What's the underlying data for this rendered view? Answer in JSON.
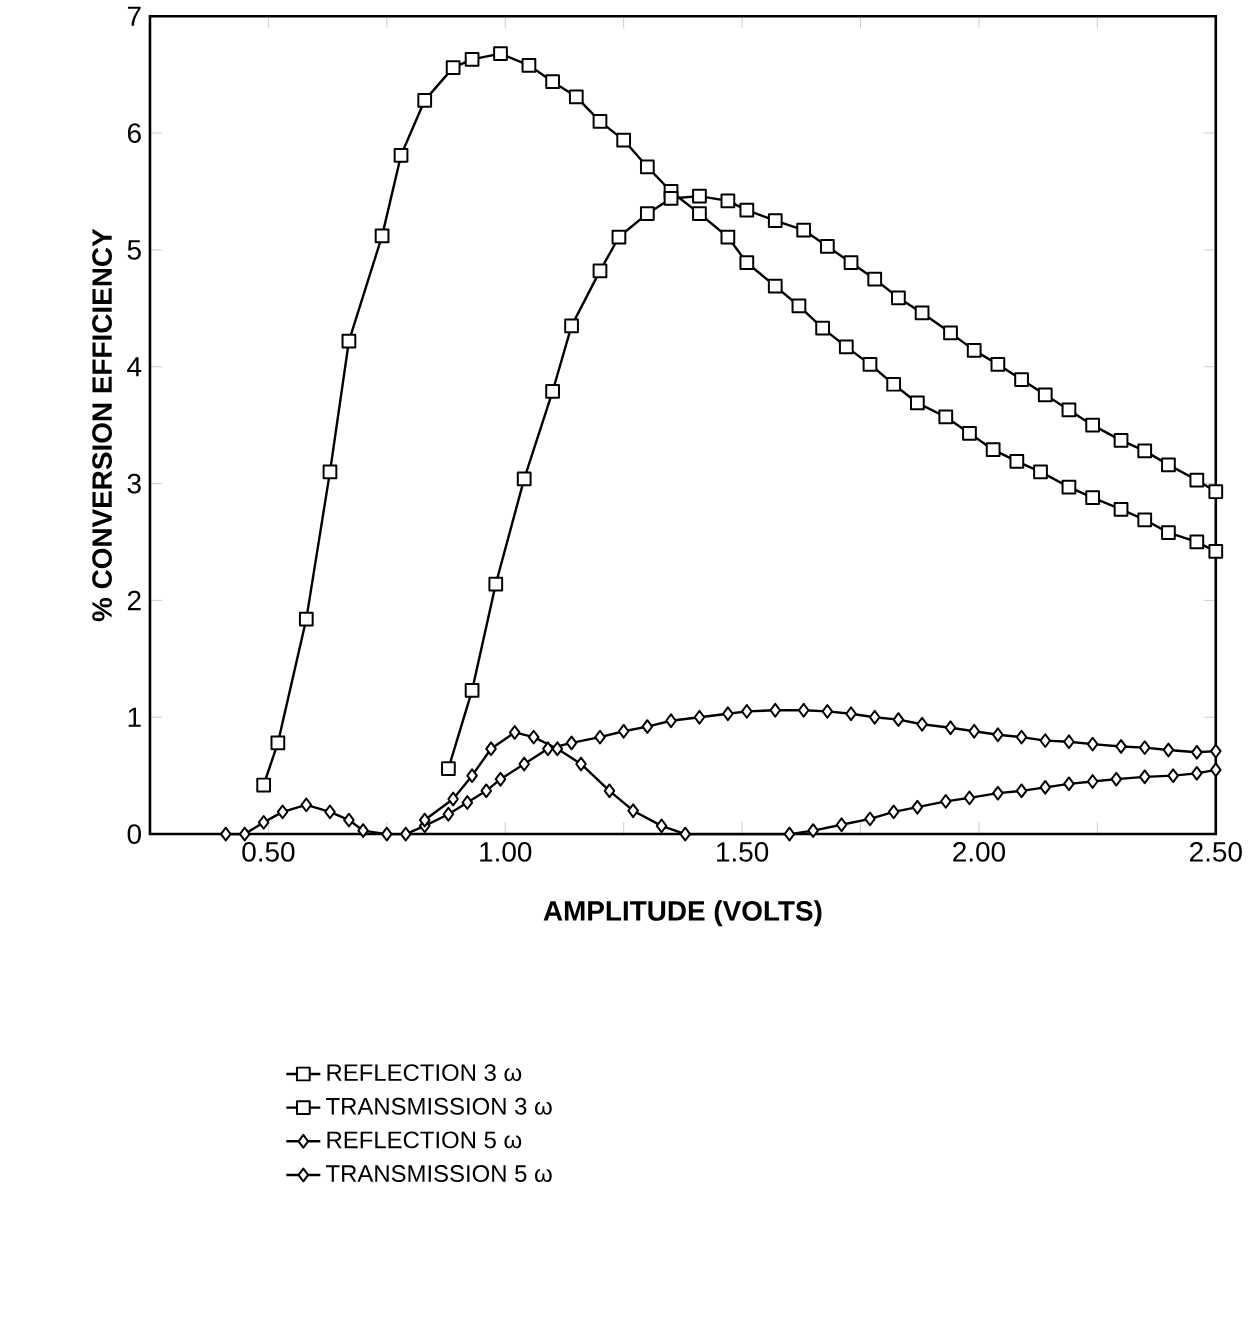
{
  "chart_data": {
    "type": "line",
    "xlabel": "AMPLITUDE (VOLTS)",
    "ylabel": "% CONVERSION EFFICIENCY",
    "xlim": [
      0.25,
      2.5
    ],
    "ylim": [
      0,
      7
    ],
    "xticks": [
      {
        "value": 0.5,
        "label": "0.50"
      },
      {
        "value": 0.75,
        "label": null
      },
      {
        "value": 1.0,
        "label": "1.00"
      },
      {
        "value": 1.25,
        "label": null
      },
      {
        "value": 1.5,
        "label": "1.50"
      },
      {
        "value": 1.75,
        "label": null
      },
      {
        "value": 2.0,
        "label": "2.00"
      },
      {
        "value": 2.25,
        "label": null
      },
      {
        "value": 2.5,
        "label": "2.50"
      }
    ],
    "yticks": [
      0,
      1,
      2,
      3,
      4,
      5,
      6,
      7
    ],
    "grid": false,
    "legend": "bottom",
    "line_style": "solid",
    "series": [
      {
        "name": "REFLECTION 3 ω",
        "color": "#000000",
        "marker": "square",
        "x": [
          0.49,
          0.52,
          0.58,
          0.63,
          0.67,
          0.74,
          0.78,
          0.83,
          0.89,
          0.93,
          0.99,
          1.05,
          1.1,
          1.15,
          1.2,
          1.25,
          1.3,
          1.35,
          1.41,
          1.47,
          1.51,
          1.57,
          1.62,
          1.67,
          1.72,
          1.77,
          1.82,
          1.87,
          1.93,
          1.98,
          2.03,
          2.08,
          2.13,
          2.19,
          2.24,
          2.3,
          2.35,
          2.4,
          2.46,
          2.5
        ],
        "values": [
          0.42,
          0.78,
          1.84,
          3.1,
          4.22,
          5.12,
          5.81,
          6.28,
          6.56,
          6.63,
          6.68,
          6.58,
          6.44,
          6.31,
          6.1,
          5.94,
          5.71,
          5.5,
          5.31,
          5.11,
          4.89,
          4.69,
          4.52,
          4.33,
          4.17,
          4.02,
          3.85,
          3.69,
          3.57,
          3.43,
          3.29,
          3.19,
          3.1,
          2.97,
          2.88,
          2.78,
          2.69,
          2.58,
          2.5,
          2.42
        ]
      },
      {
        "name": "TRANSMISSION 3 ω",
        "color": "#000000",
        "marker": "square",
        "x": [
          0.88,
          0.93,
          0.98,
          1.04,
          1.1,
          1.14,
          1.2,
          1.24,
          1.3,
          1.35,
          1.41,
          1.47,
          1.51,
          1.57,
          1.63,
          1.68,
          1.73,
          1.78,
          1.83,
          1.88,
          1.94,
          1.99,
          2.04,
          2.09,
          2.14,
          2.19,
          2.24,
          2.3,
          2.35,
          2.4,
          2.46,
          2.5
        ],
        "values": [
          0.56,
          1.23,
          2.14,
          3.04,
          3.79,
          4.35,
          4.82,
          5.11,
          5.31,
          5.44,
          5.46,
          5.42,
          5.34,
          5.25,
          5.17,
          5.03,
          4.89,
          4.75,
          4.59,
          4.46,
          4.29,
          4.14,
          4.02,
          3.89,
          3.76,
          3.63,
          3.5,
          3.37,
          3.28,
          3.16,
          3.03,
          2.93
        ]
      },
      {
        "name": "REFLECTION 5 ω",
        "color": "#000000",
        "marker": "diamond",
        "x": [
          0.41,
          0.45,
          0.49,
          0.53,
          0.58,
          0.63,
          0.67,
          0.7,
          0.75,
          0.79,
          0.83,
          0.88,
          0.92,
          0.96,
          0.99,
          1.04,
          1.09,
          1.14,
          1.2,
          1.25,
          1.3,
          1.35,
          1.41,
          1.47,
          1.51,
          1.57,
          1.63,
          1.68,
          1.73,
          1.78,
          1.83,
          1.88,
          1.94,
          1.99,
          2.04,
          2.09,
          2.14,
          2.19,
          2.24,
          2.3,
          2.35,
          2.4,
          2.46,
          2.5
        ],
        "values": [
          0,
          0,
          0.1,
          0.19,
          0.25,
          0.19,
          0.12,
          0.03,
          0,
          0,
          0.07,
          0.17,
          0.27,
          0.37,
          0.47,
          0.6,
          0.73,
          0.78,
          0.83,
          0.88,
          0.92,
          0.97,
          1.0,
          1.03,
          1.05,
          1.06,
          1.06,
          1.05,
          1.03,
          1.0,
          0.98,
          0.94,
          0.91,
          0.88,
          0.85,
          0.83,
          0.8,
          0.79,
          0.77,
          0.75,
          0.74,
          0.72,
          0.7,
          0.71
        ]
      },
      {
        "name": "TRANSMISSION 5 ω",
        "color": "#000000",
        "marker": "diamond",
        "x": [
          0.83,
          0.89,
          0.93,
          0.97,
          1.02,
          1.06,
          1.11,
          1.16,
          1.22,
          1.27,
          1.33,
          1.38,
          1.6,
          1.65,
          1.71,
          1.77,
          1.82,
          1.87,
          1.93,
          1.98,
          2.04,
          2.09,
          2.14,
          2.19,
          2.24,
          2.29,
          2.35,
          2.41,
          2.46,
          2.5
        ],
        "values": [
          0.12,
          0.3,
          0.5,
          0.73,
          0.87,
          0.83,
          0.73,
          0.6,
          0.37,
          0.2,
          0.07,
          0,
          0,
          0.03,
          0.08,
          0.13,
          0.19,
          0.23,
          0.28,
          0.31,
          0.35,
          0.37,
          0.4,
          0.43,
          0.45,
          0.47,
          0.49,
          0.5,
          0.52,
          0.55
        ]
      }
    ]
  }
}
